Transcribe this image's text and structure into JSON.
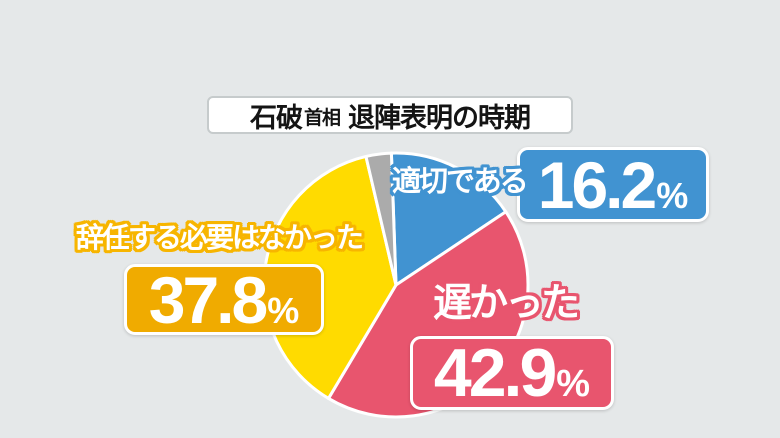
{
  "title": {
    "name": "石破",
    "honorific": "首相",
    "subject": "退陣表明の時期"
  },
  "chart_data": {
    "type": "pie",
    "title": "石破首相 退陣表明の時期",
    "start_angle_deg": -2,
    "direction": "clockwise",
    "slices": [
      {
        "key": "appropriate",
        "label": "適切である",
        "value": 16.2,
        "unit": "%",
        "color": "#4193D1",
        "box_color": "#4193D1",
        "label_outline": "#4193D1"
      },
      {
        "key": "too-late",
        "label": "遅かった",
        "value": 42.9,
        "unit": "%",
        "color": "#E8556E",
        "box_color": "#E8556E",
        "label_outline": "#E8556E"
      },
      {
        "key": "no-need",
        "label": "辞任する必要はなかった",
        "value": 37.8,
        "unit": "%",
        "color": "#FFDB00",
        "box_color": "#F0AB00",
        "label_outline": "#F7B500"
      },
      {
        "key": "other",
        "label": "",
        "value": 3.1,
        "unit": "",
        "color": "#ABABAB",
        "box_color": "#ABABAB",
        "label_outline": "#ABABAB"
      }
    ]
  },
  "colors": {
    "background": "#E5E8E9",
    "separator": "#FFFFFF"
  }
}
